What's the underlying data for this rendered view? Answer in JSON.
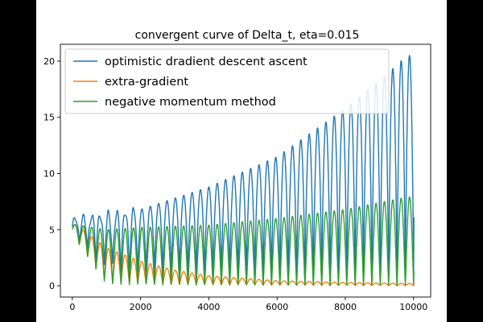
{
  "chart_data": {
    "type": "line",
    "title": "convergent curve of Delta_t, eta=0.015",
    "xlabel": "",
    "ylabel": "",
    "xlim": [
      -350,
      10500
    ],
    "ylim": [
      -1.0,
      21.5
    ],
    "xticks": [
      0,
      2000,
      4000,
      6000,
      8000,
      10000
    ],
    "xtick_labels": [
      "0",
      "2000",
      "4000",
      "6000",
      "8000",
      "10000"
    ],
    "yticks": [
      0,
      5,
      10,
      15,
      20
    ],
    "ytick_labels": [
      "0",
      "5",
      "10",
      "15",
      "20"
    ],
    "grid": false,
    "legend_position": "top-left",
    "oscillation_period": 245,
    "series": [
      {
        "name": "optimistic dradient descent ascent",
        "color": "#1f77b4",
        "peak_envelope": [
          {
            "x": 0,
            "y": 6.0
          },
          {
            "x": 2000,
            "y": 6.8
          },
          {
            "x": 4000,
            "y": 8.8
          },
          {
            "x": 6000,
            "y": 11.5
          },
          {
            "x": 8000,
            "y": 15.8
          },
          {
            "x": 9200,
            "y": 18.8
          },
          {
            "x": 9800,
            "y": 20.5
          }
        ],
        "trough_envelope": [
          {
            "x": 0,
            "y": 4.2
          },
          {
            "x": 1000,
            "y": 1.5
          },
          {
            "x": 2000,
            "y": 1.0
          },
          {
            "x": 4000,
            "y": 0.7
          },
          {
            "x": 6000,
            "y": 0.4
          },
          {
            "x": 8000,
            "y": 0.2
          },
          {
            "x": 10000,
            "y": 0.1
          }
        ],
        "end_value": 6.1
      },
      {
        "name": "extra-gradient",
        "color": "#ff7f0e",
        "peak_envelope": [
          {
            "x": 0,
            "y": 5.6
          },
          {
            "x": 300,
            "y": 5.0
          },
          {
            "x": 1000,
            "y": 3.4
          },
          {
            "x": 2000,
            "y": 2.2
          },
          {
            "x": 3000,
            "y": 1.4
          },
          {
            "x": 4000,
            "y": 0.9
          },
          {
            "x": 6000,
            "y": 0.45
          },
          {
            "x": 8000,
            "y": 0.3
          },
          {
            "x": 10000,
            "y": 0.2
          }
        ],
        "trough_envelope": [
          {
            "x": 0,
            "y": 4.5
          },
          {
            "x": 1000,
            "y": 0.3
          },
          {
            "x": 3000,
            "y": 0.1
          },
          {
            "x": 10000,
            "y": 0.0
          }
        ],
        "end_value": 0.3
      },
      {
        "name": "negative momentum method",
        "color": "#2ca02c",
        "peak_envelope": [
          {
            "x": 0,
            "y": 5.5
          },
          {
            "x": 1000,
            "y": 5.0
          },
          {
            "x": 2000,
            "y": 5.2
          },
          {
            "x": 4000,
            "y": 5.4
          },
          {
            "x": 6000,
            "y": 6.0
          },
          {
            "x": 8000,
            "y": 6.8
          },
          {
            "x": 9800,
            "y": 7.9
          }
        ],
        "trough_envelope": [
          {
            "x": 0,
            "y": 4.6
          },
          {
            "x": 1000,
            "y": 0.1
          },
          {
            "x": 10000,
            "y": 0.0
          }
        ],
        "end_value": 1.3
      }
    ]
  }
}
